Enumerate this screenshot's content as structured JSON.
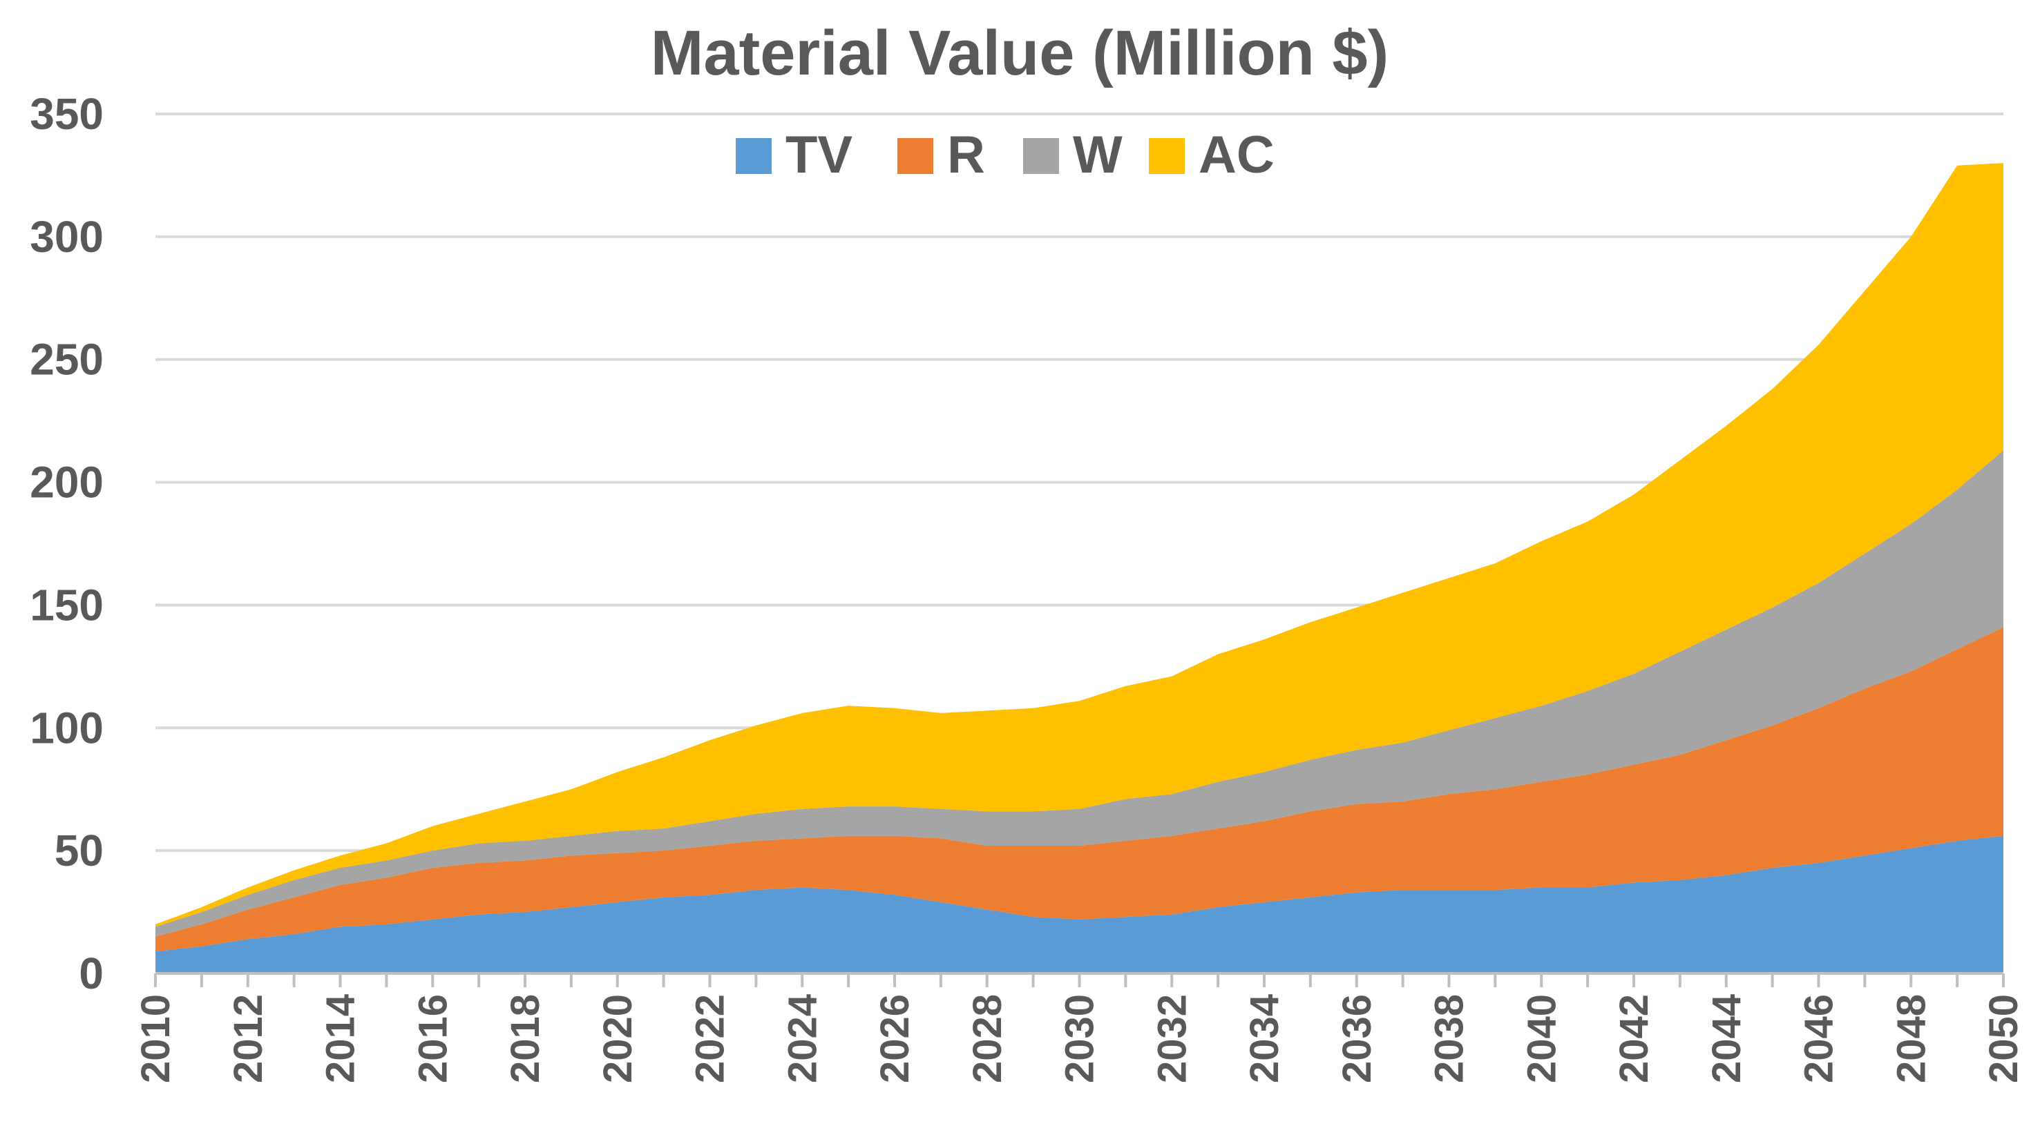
{
  "chart_data": {
    "type": "area",
    "stacked": true,
    "title": "Material Value (Million $)",
    "xlabel": "",
    "ylabel": "",
    "ylim": [
      0,
      350
    ],
    "yticks": [
      0,
      50,
      100,
      150,
      200,
      250,
      300,
      350
    ],
    "grid": true,
    "legend_position": "top-center",
    "x": [
      2010,
      2011,
      2012,
      2013,
      2014,
      2015,
      2016,
      2017,
      2018,
      2019,
      2020,
      2021,
      2022,
      2023,
      2024,
      2025,
      2026,
      2027,
      2028,
      2029,
      2030,
      2031,
      2032,
      2033,
      2034,
      2035,
      2036,
      2037,
      2038,
      2039,
      2040,
      2041,
      2042,
      2043,
      2044,
      2045,
      2046,
      2047,
      2048,
      2049,
      2050
    ],
    "xtick_labels": [
      "2010",
      "2012",
      "2014",
      "2016",
      "2018",
      "2020",
      "2022",
      "2024",
      "2026",
      "2028",
      "2030",
      "2032",
      "2034",
      "2036",
      "2038",
      "2040",
      "2042",
      "2044",
      "2046",
      "2048",
      "2050"
    ],
    "series": [
      {
        "name": "TV",
        "color": "#5b9bd5",
        "values": [
          9,
          11,
          14,
          16,
          19,
          20,
          22,
          24,
          25,
          27,
          29,
          31,
          32,
          34,
          35,
          34,
          32,
          29,
          26,
          23,
          22,
          23,
          24,
          27,
          29,
          31,
          33,
          34,
          34,
          34,
          35,
          35,
          37,
          38,
          40,
          43,
          45,
          48,
          51,
          54,
          56
        ]
      },
      {
        "name": "R",
        "color": "#ed7d31",
        "values": [
          6,
          9,
          12,
          15,
          17,
          19,
          21,
          21,
          21,
          21,
          20,
          19,
          20,
          20,
          20,
          22,
          24,
          26,
          26,
          29,
          30,
          31,
          32,
          32,
          33,
          35,
          36,
          36,
          39,
          41,
          43,
          46,
          48,
          51,
          55,
          58,
          63,
          68,
          72,
          78,
          85
        ]
      },
      {
        "name": "W",
        "color": "#a5a5a5",
        "values": [
          4,
          5,
          6,
          7,
          7,
          7,
          7,
          8,
          8,
          8,
          9,
          9,
          10,
          11,
          12,
          12,
          12,
          12,
          14,
          14,
          15,
          17,
          17,
          19,
          20,
          21,
          22,
          24,
          26,
          29,
          31,
          34,
          37,
          42,
          45,
          48,
          51,
          55,
          60,
          65,
          72
        ]
      },
      {
        "name": "AC",
        "color": "#ffc000",
        "values": [
          1,
          2,
          3,
          4,
          5,
          7,
          10,
          12,
          16,
          19,
          24,
          29,
          33,
          36,
          39,
          41,
          40,
          39,
          41,
          42,
          44,
          46,
          48,
          52,
          54,
          56,
          58,
          61,
          62,
          63,
          67,
          69,
          73,
          78,
          83,
          89,
          97,
          107,
          117,
          132,
          117
        ]
      }
    ]
  }
}
